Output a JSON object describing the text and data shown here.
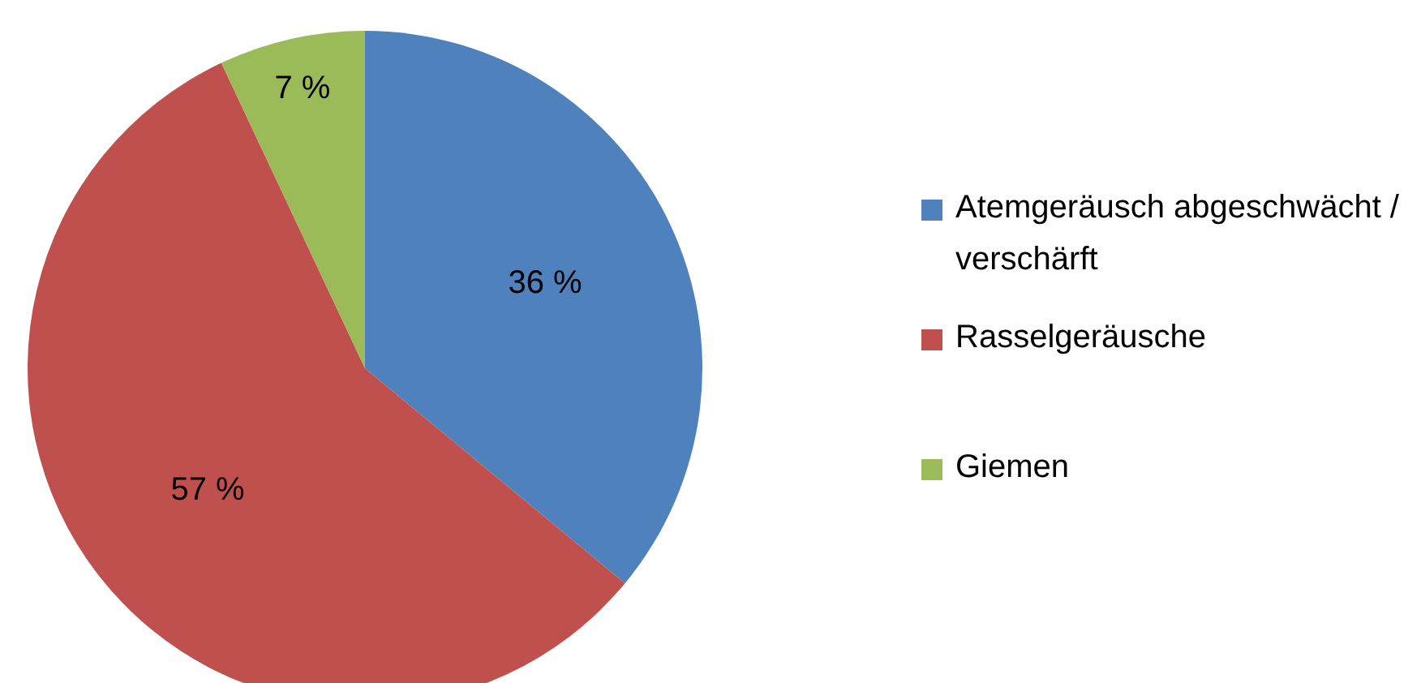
{
  "chart_data": {
    "type": "pie",
    "categories": [
      "Atemgeräusch abgeschwächt / verschärft",
      "Rasselgeräusche",
      "Giemen"
    ],
    "values": [
      36,
      57,
      7
    ],
    "colors": [
      "#4f81bd",
      "#c0504d",
      "#9bbb59"
    ],
    "value_labels": [
      "36 %",
      "57 %",
      "7 %"
    ],
    "legend": "right"
  }
}
